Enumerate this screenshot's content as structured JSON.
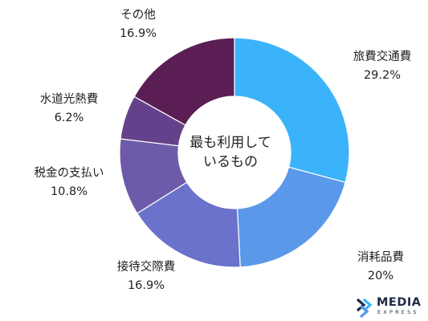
{
  "chart_data": {
    "type": "pie",
    "title": "",
    "center_label_lines": [
      "最も利用して",
      "いるもの"
    ],
    "categories": [
      "旅費交通費",
      "消耗品費",
      "接待交際費",
      "税金の支払い",
      "水道光熱費",
      "その他"
    ],
    "values": [
      29.2,
      20,
      16.9,
      10.8,
      6.2,
      16.9
    ],
    "value_labels": [
      "29.2%",
      "20%",
      "16.9%",
      "10.8%",
      "6.2%",
      "16.9%"
    ],
    "colors": [
      "#3bb3fb",
      "#5a98ea",
      "#6a72cb",
      "#6d5aa9",
      "#66418b",
      "#5a1e55"
    ],
    "legend": "none (direct labels)"
  },
  "logo": {
    "name": "MEDIA",
    "sub": "EXPRESS",
    "icon": "media-express-logo-icon",
    "color": "#1f2a44",
    "accent": "#3bb3fb"
  }
}
